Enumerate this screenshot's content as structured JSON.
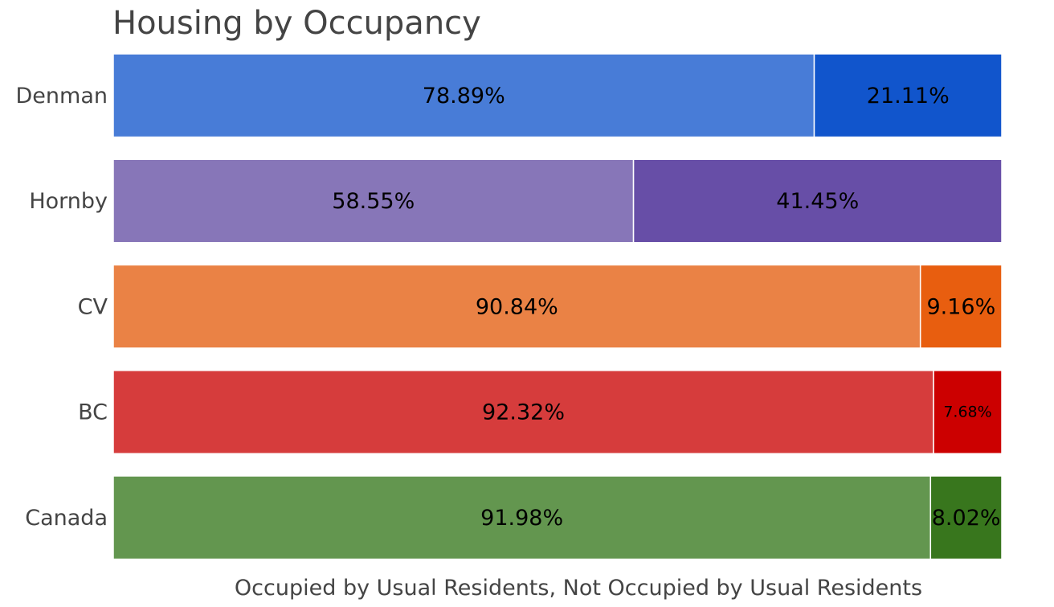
{
  "chart_data": {
    "type": "bar",
    "orientation": "horizontal",
    "stacked": true,
    "title": "Housing by Occupancy",
    "xlabel": "Occupied by Usual Residents, Not Occupied by Usual Residents",
    "ylabel": "",
    "xlim": [
      0,
      100
    ],
    "grid": false,
    "legend": "none",
    "categories": [
      "Denman",
      "Hornby",
      "CV",
      "BC",
      "Canada"
    ],
    "series": [
      {
        "values": [
          78.89,
          58.55,
          90.84,
          92.32,
          91.98
        ],
        "labels": [
          "78.89%",
          "58.55%",
          "90.84%",
          "92.32%",
          "91.98%"
        ],
        "colors": [
          "#487cd7",
          "#8776b8",
          "#ea8245",
          "#d63c3c",
          "#63964f"
        ]
      },
      {
        "values": [
          21.11,
          41.45,
          9.16,
          7.68,
          8.02
        ],
        "labels": [
          "21.11%",
          "41.45%",
          "9.16%",
          "7.68%",
          "8.02%"
        ],
        "colors": [
          "#1155cc",
          "#674ea7",
          "#e85e0f",
          "#cc0000",
          "#38761d"
        ]
      }
    ]
  }
}
